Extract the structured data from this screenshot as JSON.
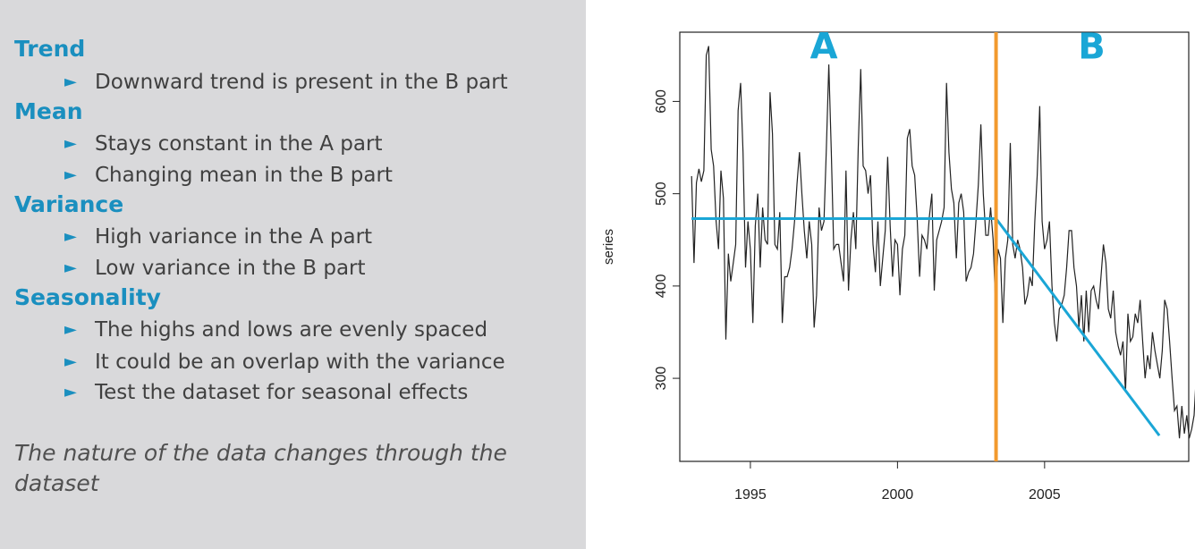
{
  "slide": {
    "sections": [
      {
        "heading": "Trend",
        "bullets": [
          "Downward trend is present in the B part"
        ]
      },
      {
        "heading": "Mean",
        "bullets": [
          "Stays constant in the A part",
          "Changing mean in the B part"
        ]
      },
      {
        "heading": "Variance",
        "bullets": [
          "High variance in the A part",
          "Low variance in the B part"
        ]
      },
      {
        "heading": "Seasonality",
        "bullets": [
          "The highs and lows are evenly spaced",
          "It could be an overlap with the variance",
          "Test the dataset for seasonal effects"
        ]
      }
    ],
    "bullet_marker": "►",
    "conclusion": "The nature of the data changes through the dataset"
  },
  "colors": {
    "left_panel_bg": "#d9d9db",
    "heading": "#1a8fbf",
    "annotation": "#1aa6d6",
    "split_line": "#f29a2e",
    "series_line": "#222222"
  },
  "chart_data": {
    "type": "line",
    "ylabel": "series",
    "xlabel": "",
    "title": "",
    "xlim": [
      1992.6,
      2009.9
    ],
    "ylim": [
      210,
      675
    ],
    "xticks": [
      1995,
      2000,
      2005
    ],
    "yticks": [
      300,
      400,
      500,
      600
    ],
    "x_start": 1993.0,
    "x_step": 0.08333333,
    "series": [
      {
        "values": [
          519,
          425,
          512,
          527,
          513,
          525,
          650,
          660,
          548,
          530,
          470,
          440,
          525,
          495,
          342,
          435,
          405,
          425,
          445,
          590,
          620,
          545,
          420,
          470,
          440,
          360,
          465,
          500,
          420,
          485,
          450,
          445,
          610,
          565,
          445,
          440,
          480,
          360,
          410,
          410,
          420,
          440,
          470,
          510,
          545,
          500,
          460,
          430,
          470,
          445,
          355,
          390,
          485,
          460,
          470,
          550,
          640,
          545,
          440,
          445,
          445,
          425,
          405,
          525,
          395,
          450,
          480,
          440,
          550,
          635,
          530,
          525,
          500,
          520,
          445,
          415,
          470,
          400,
          430,
          460,
          540,
          465,
          410,
          450,
          445,
          390,
          440,
          455,
          560,
          570,
          530,
          520,
          475,
          410,
          455,
          450,
          440,
          475,
          500,
          395,
          450,
          460,
          470,
          485,
          620,
          545,
          505,
          490,
          430,
          490,
          500,
          480,
          405,
          415,
          420,
          435,
          470,
          510,
          575,
          500,
          455,
          455,
          485,
          450,
          380,
          440,
          430,
          360,
          430,
          450,
          555,
          445,
          430,
          450,
          440,
          420,
          380,
          390,
          410,
          400,
          470,
          520,
          595,
          470,
          440,
          450,
          470,
          400,
          360,
          340,
          375,
          380,
          390,
          420,
          460,
          460,
          420,
          400,
          355,
          390,
          340,
          395,
          350,
          395,
          400,
          385,
          375,
          410,
          445,
          425,
          375,
          365,
          395,
          350,
          335,
          325,
          340,
          285,
          370,
          340,
          345,
          370,
          360,
          385,
          340,
          300,
          325,
          310,
          350,
          330,
          315,
          300,
          330,
          385,
          375,
          340,
          300,
          265,
          270,
          235,
          270,
          240,
          260,
          235,
          245,
          260,
          310,
          305,
          265,
          240,
          230,
          265,
          240
        ]
      }
    ],
    "annotations": [
      {
        "text": "A",
        "x": 1997.5,
        "y": 660
      },
      {
        "text": "B",
        "x": 2006.6,
        "y": 660
      }
    ],
    "split_year": 2003.35,
    "mean_line": {
      "x_from": 1993.0,
      "x_to": 2003.35,
      "y": 473
    },
    "trend_line": {
      "x_from": 2003.35,
      "y_from": 473,
      "x_to": 2008.9,
      "y_to": 238
    },
    "grid": false,
    "legend": "none"
  }
}
